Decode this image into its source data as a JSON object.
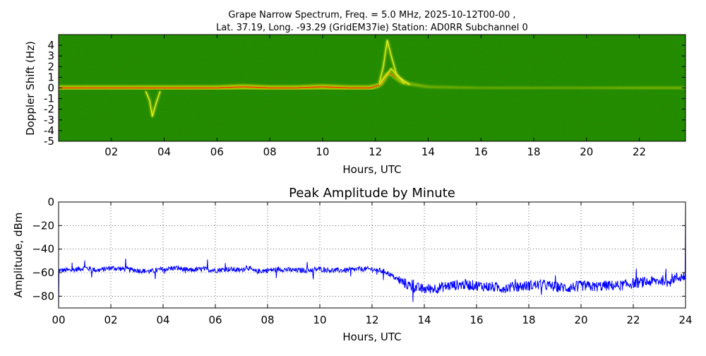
{
  "figure": {
    "title_line1": "Grape Narrow Spectrum, Freq. = 5.0 MHz, 2025-10-12T00-00 ,",
    "title_line2": "Lat.  37.19, Long. -93.29 (GridEM37ie) Station: AD0RR Subchannel 0"
  },
  "chart_data": [
    {
      "type": "heatmap",
      "title": "",
      "xlabel": "Hours, UTC",
      "ylabel": "Doppler Shift (Hz)",
      "xlim": [
        0,
        23.75
      ],
      "ylim": [
        -5,
        5
      ],
      "x_ticks": [
        2,
        4,
        6,
        8,
        10,
        12,
        14,
        16,
        18,
        20,
        22
      ],
      "x_tick_labels": [
        "02",
        "04",
        "06",
        "08",
        "10",
        "12",
        "14",
        "16",
        "18",
        "20",
        "22"
      ],
      "y_ticks": [
        -5,
        -4,
        -3,
        -2,
        -1,
        0,
        1,
        2,
        3,
        4
      ],
      "y_tick_labels": [
        "-5",
        "-4",
        "-3",
        "-2",
        "-1",
        "0",
        "1",
        "2",
        "3",
        "4"
      ],
      "grid": false,
      "colors": {
        "background": "#1f8c00",
        "ridge_low": "#c8d800",
        "ridge_high": "#ff2a00"
      },
      "ridge": {
        "x": [
          0,
          1,
          2,
          3,
          4,
          5,
          6,
          7,
          8,
          9,
          10,
          11,
          11.8,
          12.2,
          12.5,
          13,
          13.5,
          14,
          16,
          18,
          20,
          22,
          23.75
        ],
        "y": [
          0,
          0,
          0,
          0,
          0,
          0,
          0,
          0.1,
          0,
          0,
          0.1,
          0,
          0,
          0.3,
          1.5,
          0.5,
          0.3,
          0.1,
          0,
          0,
          0,
          0,
          0
        ],
        "intensity": [
          0.9,
          0.9,
          0.9,
          0.9,
          0.9,
          0.9,
          0.9,
          0.9,
          0.9,
          0.9,
          0.9,
          0.9,
          0.9,
          0.7,
          0.6,
          0.5,
          0.4,
          0.3,
          0.2,
          0.2,
          0.2,
          0.3,
          0.3
        ]
      },
      "features": [
        {
          "x": [
            3.3,
            3.45,
            3.55,
            3.7,
            3.85
          ],
          "y": [
            -0.3,
            -1.2,
            -2.7,
            -1.4,
            -0.3
          ]
        },
        {
          "x": [
            12.15,
            12.3,
            12.45,
            12.6,
            12.8,
            13.1
          ],
          "y": [
            0.5,
            2.0,
            4.5,
            3.0,
            1.3,
            0.4
          ]
        },
        {
          "x": [
            12.15,
            12.35,
            12.6,
            12.9,
            13.3
          ],
          "y": [
            0.3,
            1.0,
            1.8,
            1.0,
            0.3
          ]
        }
      ]
    },
    {
      "type": "line",
      "title": "Peak Amplitude by Minute",
      "xlabel": "Hours, UTC",
      "ylabel": "Amplitude, dBm",
      "xlim": [
        0,
        24
      ],
      "ylim": [
        -90,
        0
      ],
      "x_ticks": [
        0,
        2,
        4,
        6,
        8,
        10,
        12,
        14,
        16,
        18,
        20,
        22,
        24
      ],
      "x_tick_labels": [
        "00",
        "02",
        "04",
        "06",
        "08",
        "10",
        "12",
        "14",
        "16",
        "18",
        "20",
        "22",
        "24"
      ],
      "y_ticks": [
        0,
        -20,
        -40,
        -60,
        -80
      ],
      "y_tick_labels": [
        "0",
        "−20",
        "−40",
        "−60",
        "−80"
      ],
      "grid": true,
      "line_color": "#0000ff",
      "series": [
        {
          "x": [
            0,
            0.5,
            1,
            1.5,
            2,
            2.5,
            3,
            3.5,
            4,
            4.5,
            5,
            5.5,
            6,
            6.5,
            7,
            7.2,
            7.5,
            8,
            8.5,
            9,
            9.5,
            10,
            10.5,
            11,
            11.5,
            12,
            12.5,
            13,
            13.5,
            14,
            14.5,
            15,
            15.5,
            16,
            16.5,
            17,
            17.5,
            18,
            18.5,
            19,
            19.5,
            20,
            20.5,
            21,
            21.5,
            22,
            22.5,
            23,
            23.5,
            24
          ],
          "y": [
            -58,
            -58,
            -56,
            -58,
            -56,
            -57,
            -58,
            -59,
            -57,
            -56,
            -58,
            -57,
            -58,
            -57,
            -58,
            -55,
            -59,
            -58,
            -57,
            -58,
            -58,
            -57,
            -58,
            -58,
            -57,
            -57,
            -59,
            -66,
            -72,
            -74,
            -73,
            -71,
            -70,
            -71,
            -72,
            -73,
            -72,
            -71,
            -70,
            -72,
            -73,
            -71,
            -72,
            -71,
            -71,
            -69,
            -68,
            -67,
            -65,
            -63
          ]
        }
      ]
    }
  ]
}
